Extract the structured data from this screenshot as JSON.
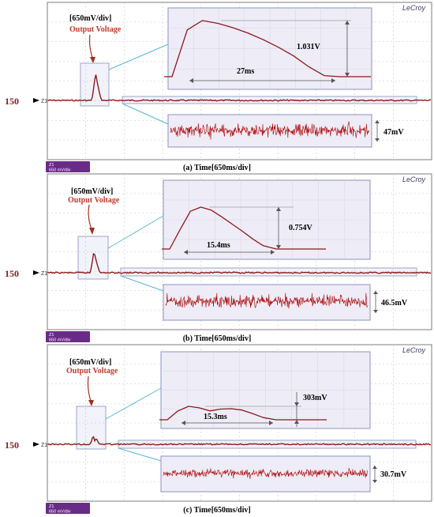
{
  "colors": {
    "trace": "#8b1a1a",
    "noise": "#aa0000",
    "annotation_text": "#c0392b",
    "label_150": "#8b1a1a",
    "inset_bg": "#eeecf6",
    "inset_border": "#9da3c9",
    "zoom_link": "#58b4d8",
    "grid": "#c9c9c9",
    "screen_bg": "#ffffff",
    "status_purple": "#6a2b86"
  },
  "chart_data": [
    {
      "type": "line",
      "brand": "LeCroy",
      "channel_label": "150",
      "channel_marker": "Z1",
      "division_label": "[650mV/div]",
      "signal_label": "Output Voltage",
      "caption": "(a)  Time[650ms/div]",
      "status_line1": "Z1",
      "status_line2": "650 mV/div",
      "ylim": [
        -3,
        3
      ],
      "pulse": {
        "peak_divisions": 1.6,
        "shape": "sharp"
      },
      "inset_pulse": {
        "amplitude_label": "1.031V",
        "width_label": "27ms",
        "x_ms": [
          0,
          3,
          6,
          9,
          12,
          15,
          18,
          21,
          24,
          27,
          30,
          33
        ],
        "y_v": [
          0.0,
          0.86,
          1.031,
          0.98,
          0.9,
          0.8,
          0.68,
          0.54,
          0.38,
          0.18,
          0.02,
          0.0
        ]
      },
      "noise": {
        "label": "47mV"
      }
    },
    {
      "type": "line",
      "brand": "LeCroy",
      "channel_label": "150",
      "channel_marker": "Z1",
      "division_label": "[650mV/div]",
      "signal_label": "Output Voltage",
      "caption": "(b)  Time[650ms/div]",
      "status_line1": "Z1",
      "status_line2": "650 mV/div",
      "ylim": [
        -3,
        3
      ],
      "pulse": {
        "peak_divisions": 1.25,
        "shape": "sharp"
      },
      "inset_pulse": {
        "amplitude_label": "0.754V",
        "width_label": "15.4ms",
        "x_ms": [
          0,
          1.5,
          3,
          4.5,
          6,
          7.5,
          9,
          10.5,
          12,
          13.5,
          15.4,
          18
        ],
        "y_v": [
          0.0,
          0.35,
          0.68,
          0.754,
          0.7,
          0.58,
          0.45,
          0.32,
          0.18,
          0.06,
          0.0,
          0.0
        ]
      },
      "noise": {
        "label": "46.5mV"
      }
    },
    {
      "type": "line",
      "brand": "LeCroy",
      "channel_label": "150",
      "channel_marker": "Z1",
      "division_label": "[650mV/div]",
      "signal_label": "Output Voltage",
      "caption": "(c)  Time[650ms/div]",
      "status_line1": "Z1",
      "status_line2": "650 mV/div",
      "ylim": [
        -3,
        3
      ],
      "pulse": {
        "peak_divisions": 0.45,
        "shape": "double"
      },
      "inset_pulse": {
        "amplitude_label": "303mV",
        "width_label": "15.3ms",
        "x_ms": [
          0,
          1.5,
          3,
          4.5,
          6,
          7.5,
          9,
          10.5,
          12,
          13.5,
          15.3,
          18
        ],
        "y_v": [
          0.0,
          0.2,
          0.303,
          0.27,
          0.2,
          0.24,
          0.25,
          0.22,
          0.14,
          0.05,
          0.0,
          0.0
        ]
      },
      "noise": {
        "label": "30.7mV"
      }
    }
  ]
}
